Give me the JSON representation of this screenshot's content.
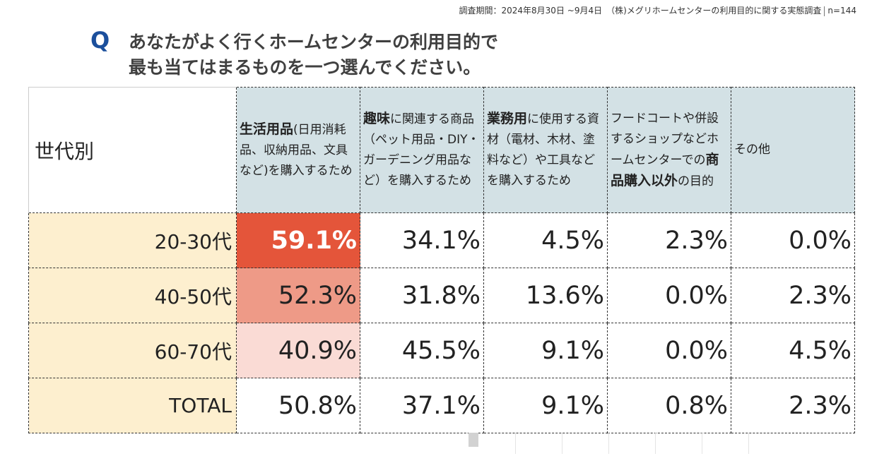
{
  "survey_note": {
    "text": "調査期間：2024年8月30日 ~9月4日　（株)メグリホームセンターの利用目的に関する実態調査",
    "sample": "n=144"
  },
  "question": {
    "mark": "Q",
    "line1": "あなたがよく行くホームセンターの利用目的で",
    "line2": "最も当てはまるものを一つ選んでください。"
  },
  "chart_data": {
    "type": "table",
    "row_header_title": "世代別",
    "columns": [
      {
        "bold": "生活用品",
        "rest": "(日用消耗品、収納用品、文具など)を購入するため",
        "bold2": "",
        "rest2": ""
      },
      {
        "bold": "趣味",
        "rest": "に関連する商品（ペット用品・DIY・ガーデニング用品など）を購入するため",
        "bold2": "",
        "rest2": ""
      },
      {
        "bold": "業務用",
        "rest": "に使用する資材（電材、木材、塗料など）や工具などを購入するため",
        "bold2": "",
        "rest2": ""
      },
      {
        "pre": "フードコートや併設するショップなどホームセンターでの",
        "bold": "商品購入以外",
        "rest": "の目的"
      },
      {
        "pre": "その他",
        "bold": "",
        "rest": ""
      }
    ],
    "rows": [
      {
        "label": "20-30代",
        "values": [
          "59.1%",
          "34.1%",
          "4.5%",
          "2.3%",
          "0.0%"
        ]
      },
      {
        "label": "40-50代",
        "values": [
          "52.3%",
          "31.8%",
          "13.6%",
          "0.0%",
          "2.3%"
        ]
      },
      {
        "label": "60-70代",
        "values": [
          "40.9%",
          "45.5%",
          "9.1%",
          "0.0%",
          "4.5%"
        ]
      },
      {
        "label": "TOTAL",
        "values": [
          "50.8%",
          "37.1%",
          "9.1%",
          "0.8%",
          "2.3%"
        ]
      }
    ],
    "highlight_colors": {
      "top": "#e4553a",
      "mid": "#ee9a87",
      "low": "#fadbd5"
    },
    "header_bg": "#d3e1e5",
    "row_header_bg": "#fdefcf"
  }
}
